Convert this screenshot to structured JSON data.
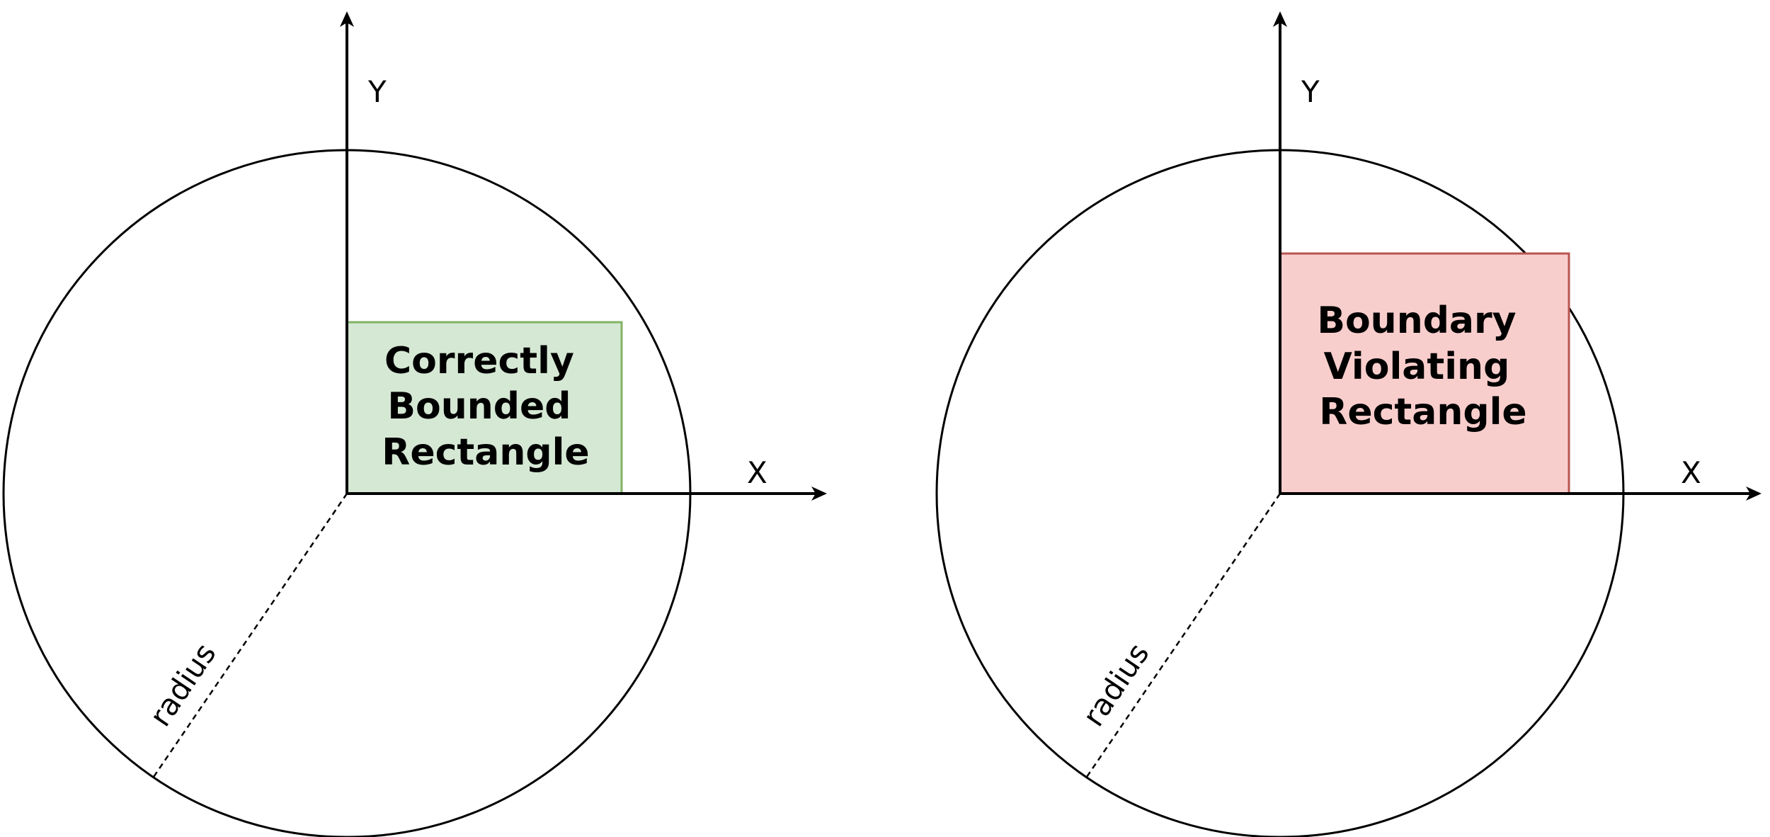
{
  "colors": {
    "line": "#000000",
    "ok_fill": "#d5e8d4",
    "ok_stroke": "#82b366",
    "bad_fill": "#f8cecc",
    "bad_stroke": "#b85450"
  },
  "panels": [
    {
      "status": "ok",
      "x_axis_label": "X",
      "y_axis_label": "Y",
      "radius_label": "radius",
      "rect_label_lines": [
        "Correctly",
        "Bounded",
        "Rectangle"
      ]
    },
    {
      "status": "violating",
      "x_axis_label": "X",
      "y_axis_label": "Y",
      "radius_label": "radius",
      "rect_label_lines": [
        "Boundary",
        "Violating",
        "Rectangle"
      ]
    }
  ]
}
